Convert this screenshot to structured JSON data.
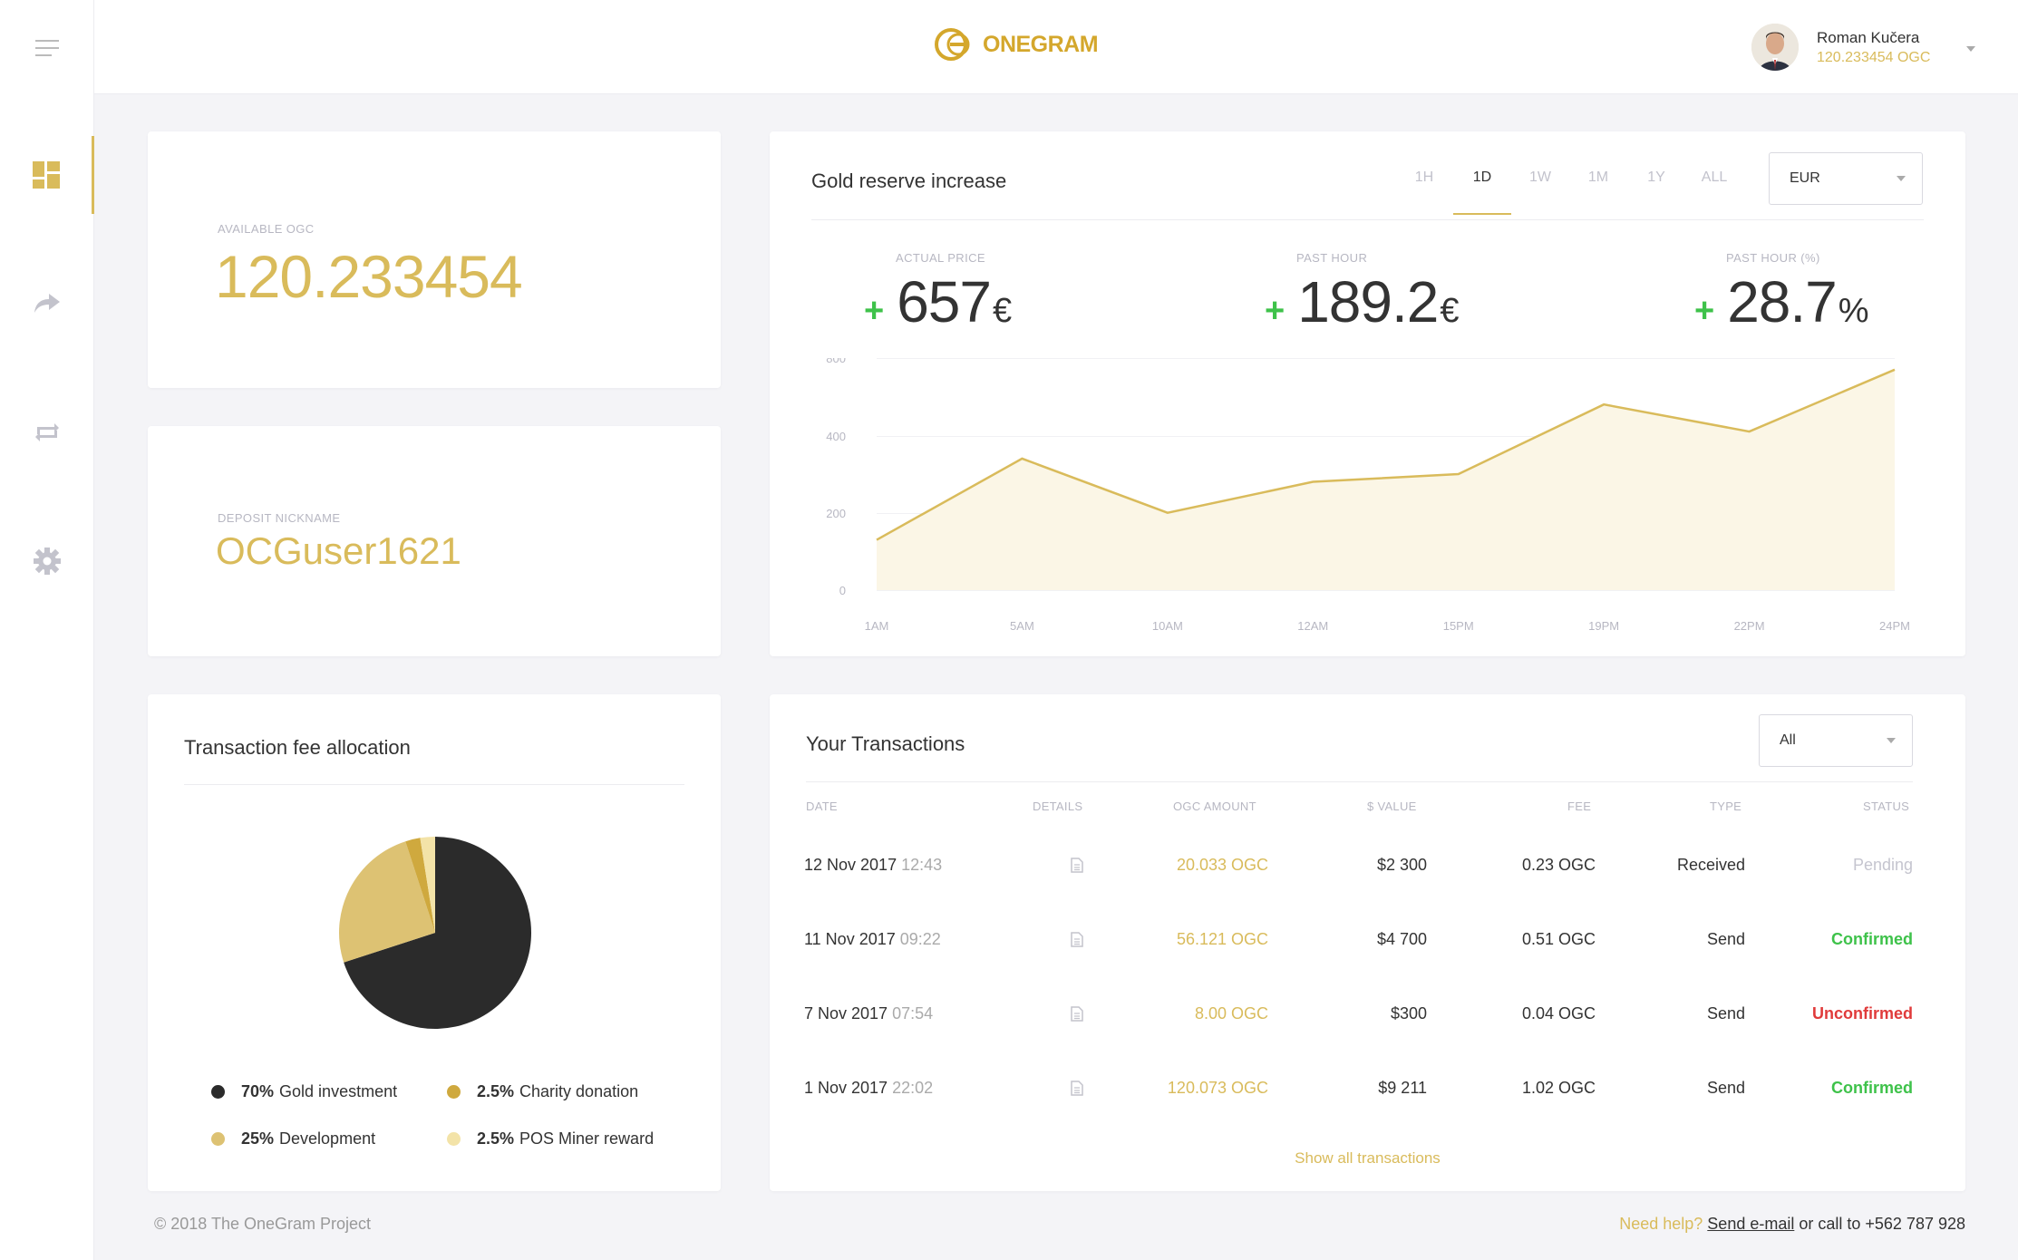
{
  "header": {
    "logo_text": "ONEGRAM",
    "user_name": "Roman Kučera",
    "user_balance": "120.233454 OGC"
  },
  "balance": {
    "label": "AVAILABLE OGC",
    "value": "120.233454"
  },
  "nickname": {
    "label": "DEPOSIT NICKNAME",
    "value": "OCGuser1621"
  },
  "gold": {
    "title": "Gold reserve increase",
    "timeframes": [
      "1H",
      "1D",
      "1W",
      "1M",
      "1Y",
      "ALL"
    ],
    "active_timeframe": "1D",
    "currency": "EUR",
    "stats": [
      {
        "label": "ACTUAL PRICE",
        "sign": "+",
        "value": "657",
        "unit": "€"
      },
      {
        "label": "PAST HOUR",
        "sign": "+",
        "value": "189.2",
        "unit": "€"
      },
      {
        "label": "PAST HOUR (%)",
        "sign": "+",
        "value": "28.7",
        "unit": "%"
      }
    ]
  },
  "chart_data": {
    "type": "area",
    "title": "",
    "xlabel": "",
    "ylabel": "",
    "x": [
      "1AM",
      "5AM",
      "10AM",
      "12AM",
      "15PM",
      "19PM",
      "22PM",
      "24PM"
    ],
    "y": [
      130,
      340,
      200,
      280,
      300,
      480,
      410,
      570
    ],
    "y_ticks": [
      0,
      200,
      400,
      800
    ],
    "ylim": [
      0,
      600
    ],
    "grid": true,
    "color": "#d9bb5b"
  },
  "fees": {
    "title": "Transaction fee allocation",
    "chart_data": {
      "type": "pie",
      "slices": [
        {
          "pct": "70%",
          "name": "Gold investment",
          "value": 70,
          "color": "#2b2b2b"
        },
        {
          "pct": "25%",
          "name": "Development",
          "value": 25,
          "color": "#ddc273"
        },
        {
          "pct": "2.5%",
          "name": "Charity donation",
          "value": 2.5,
          "color": "#cfa93e"
        },
        {
          "pct": "2.5%",
          "name": "POS Miner reward",
          "value": 2.5,
          "color": "#f3e3a8"
        }
      ]
    }
  },
  "transactions": {
    "title": "Your Transactions",
    "filter": "All",
    "columns": [
      "DATE",
      "DETAILS",
      "OGC AMOUNT",
      "$ VALUE",
      "FEE",
      "TYPE",
      "STATUS"
    ],
    "rows": [
      {
        "date": "12 Nov 2017",
        "time": "12:43",
        "amount": "20.033 OGC",
        "value": "$2 300",
        "fee": "0.23 OGC",
        "type": "Received",
        "status": "Pending",
        "status_kind": "pending"
      },
      {
        "date": "11 Nov 2017",
        "time": "09:22",
        "amount": "56.121 OGC",
        "value": "$4 700",
        "fee": "0.51 OGC",
        "type": "Send",
        "status": "Confirmed",
        "status_kind": "green"
      },
      {
        "date": "7 Nov 2017",
        "time": "07:54",
        "amount": "8.00 OGC",
        "value": "$300",
        "fee": "0.04 OGC",
        "type": "Send",
        "status": "Unconfirmed",
        "status_kind": "red"
      },
      {
        "date": "1 Nov 2017",
        "time": "22:02",
        "amount": "120.073 OGC",
        "value": "$9 211",
        "fee": "1.02 OGC",
        "type": "Send",
        "status": "Confirmed",
        "status_kind": "green"
      }
    ],
    "show_all": "Show all transactions"
  },
  "footer": {
    "copyright": "© 2018 The OneGram Project",
    "help": "Need help?",
    "mail": "Send e-mail",
    "call": "or call to +562 787 928"
  }
}
